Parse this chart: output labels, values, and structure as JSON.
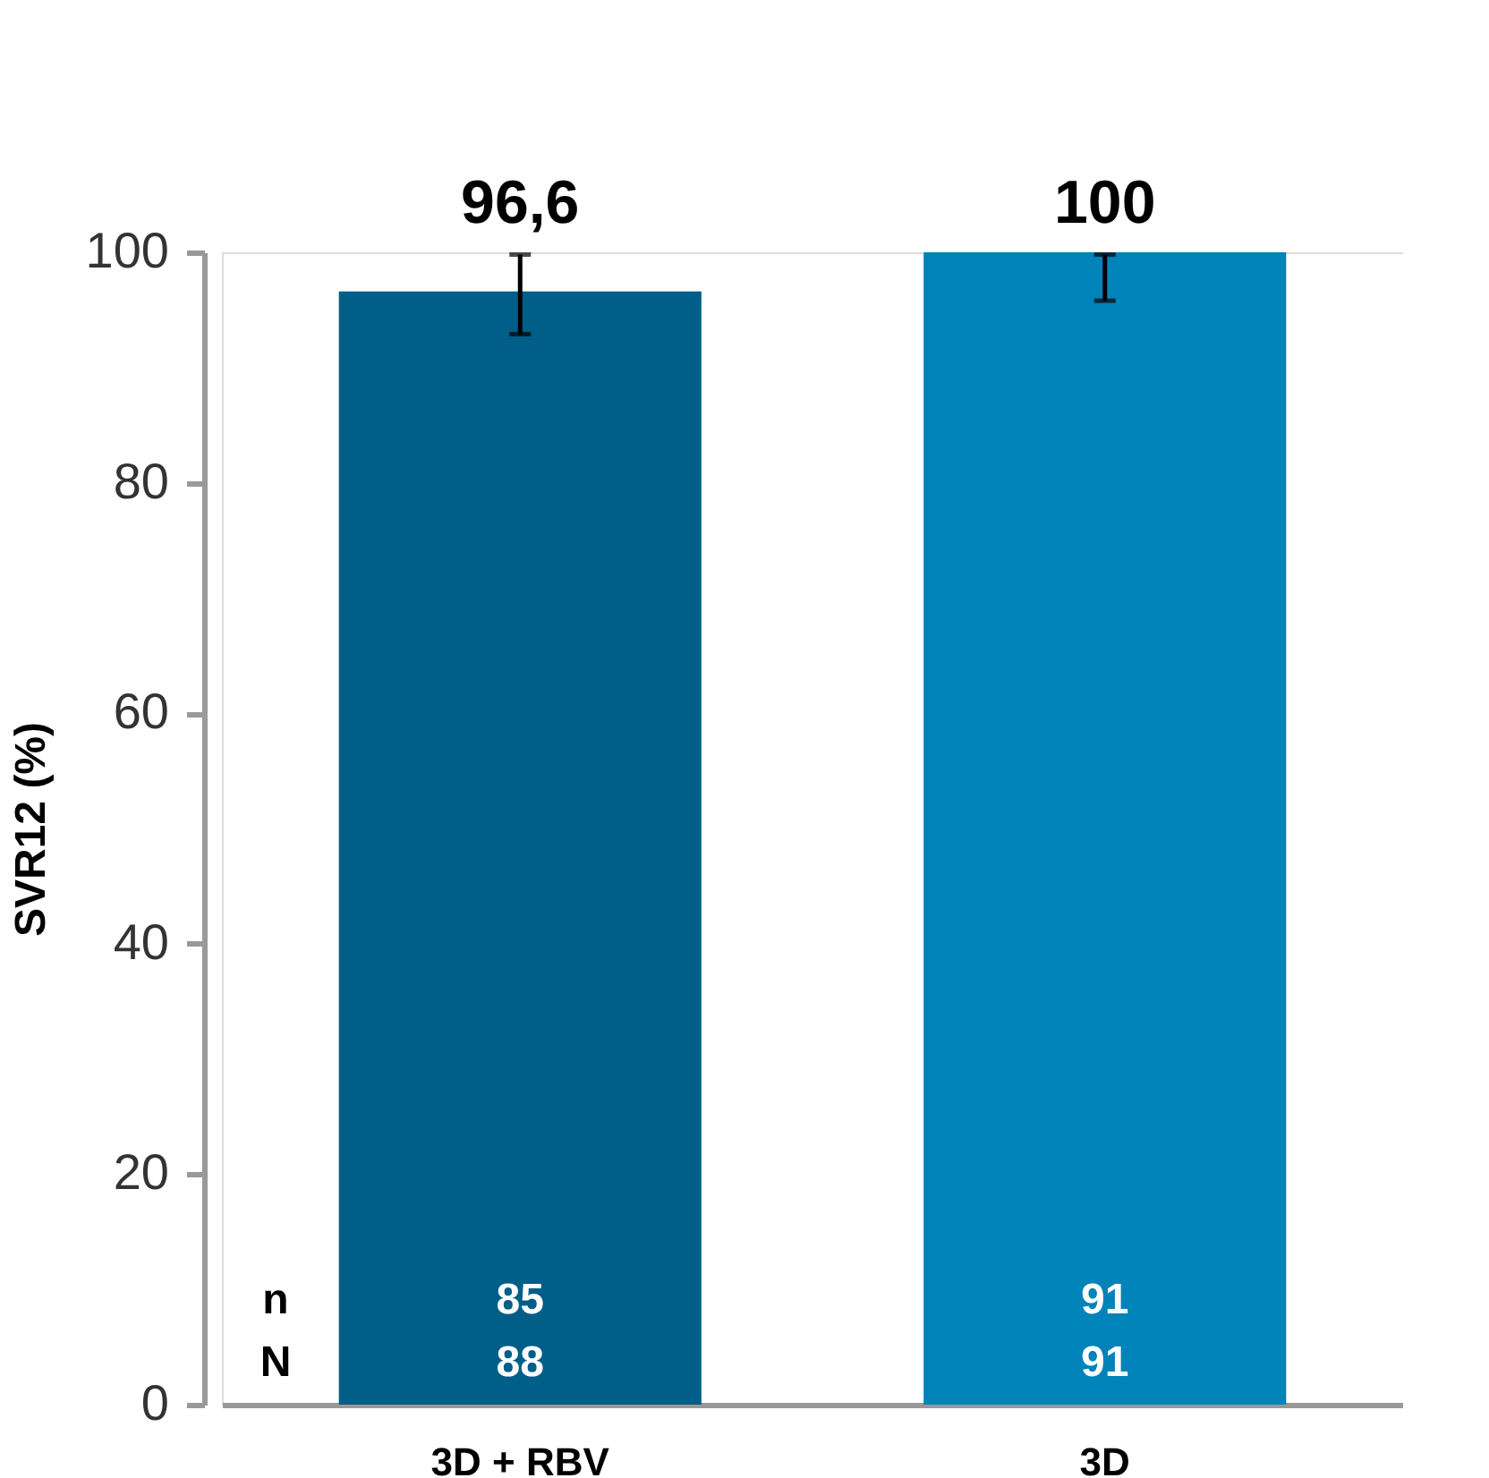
{
  "chart_data": {
    "type": "bar",
    "ylabel": "SVR12 (%)",
    "categories": [
      "3D + RBV",
      "3D"
    ],
    "values": [
      96.6,
      100
    ],
    "colors": [
      "#005e88",
      "#0083b9"
    ],
    "errors": [
      [
        92.9,
        99.8
      ],
      [
        95.8,
        99.8
      ]
    ],
    "value_labels": [
      "96,6",
      "100"
    ],
    "ylim": [
      0,
      100
    ],
    "yticks": [
      0,
      20,
      40,
      60,
      80,
      100
    ],
    "grid": false,
    "annotations": [
      "n",
      "N",
      "85",
      "88",
      "91",
      "91"
    ]
  }
}
